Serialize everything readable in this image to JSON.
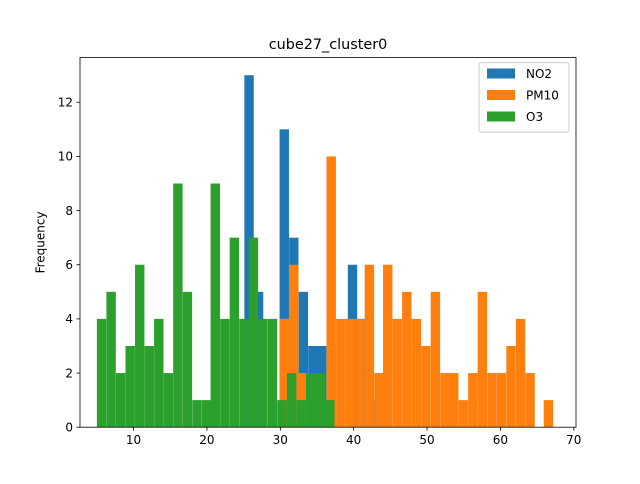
{
  "chart_data": {
    "type": "histogram",
    "title": "cube27_cluster0",
    "xlabel": "",
    "ylabel": "Frequency",
    "xlim": [
      2.7,
      70.3
    ],
    "ylim": [
      0,
      13.65
    ],
    "xticks": [
      10,
      20,
      30,
      40,
      50,
      60,
      70
    ],
    "yticks": [
      0,
      2,
      4,
      6,
      8,
      10,
      12
    ],
    "grid": false,
    "legend_position": "top-right",
    "bin_width": 1.28,
    "series": [
      {
        "name": "NO2",
        "color": "#1f77b4",
        "bins": [
          {
            "x0": 25.1,
            "count": 13
          },
          {
            "x0": 26.4,
            "count": 5
          },
          {
            "x0": 29.9,
            "count": 11
          },
          {
            "x0": 31.2,
            "count": 7
          },
          {
            "x0": 32.5,
            "count": 5
          },
          {
            "x0": 33.8,
            "count": 3
          },
          {
            "x0": 35.0,
            "count": 3
          },
          {
            "x0": 36.3,
            "count": 3
          },
          {
            "x0": 39.2,
            "count": 6
          },
          {
            "x0": 40.5,
            "count": 4
          },
          {
            "x0": 42.1,
            "count": 1
          }
        ]
      },
      {
        "name": "PM10",
        "color": "#ff7f0e",
        "bins": [
          {
            "x0": 29.9,
            "count": 4
          },
          {
            "x0": 31.2,
            "count": 6
          },
          {
            "x0": 32.5,
            "count": 2
          },
          {
            "x0": 36.3,
            "count": 10
          },
          {
            "x0": 37.6,
            "count": 4
          },
          {
            "x0": 38.9,
            "count": 4
          },
          {
            "x0": 40.2,
            "count": 4
          },
          {
            "x0": 41.5,
            "count": 6
          },
          {
            "x0": 42.8,
            "count": 2
          },
          {
            "x0": 44.0,
            "count": 6
          },
          {
            "x0": 45.3,
            "count": 4
          },
          {
            "x0": 46.6,
            "count": 5
          },
          {
            "x0": 47.9,
            "count": 4
          },
          {
            "x0": 49.2,
            "count": 3
          },
          {
            "x0": 50.5,
            "count": 5
          },
          {
            "x0": 51.8,
            "count": 2
          },
          {
            "x0": 53.0,
            "count": 2
          },
          {
            "x0": 54.3,
            "count": 1
          },
          {
            "x0": 55.6,
            "count": 2
          },
          {
            "x0": 56.9,
            "count": 5
          },
          {
            "x0": 58.2,
            "count": 2
          },
          {
            "x0": 59.5,
            "count": 2
          },
          {
            "x0": 60.8,
            "count": 3
          },
          {
            "x0": 62.1,
            "count": 4
          },
          {
            "x0": 63.4,
            "count": 2
          },
          {
            "x0": 65.9,
            "count": 1
          }
        ]
      },
      {
        "name": "O3",
        "color": "#2ca02c",
        "bins": [
          {
            "x0": 5.0,
            "count": 4
          },
          {
            "x0": 6.3,
            "count": 5
          },
          {
            "x0": 7.6,
            "count": 2
          },
          {
            "x0": 8.9,
            "count": 3
          },
          {
            "x0": 10.2,
            "count": 6
          },
          {
            "x0": 11.5,
            "count": 3
          },
          {
            "x0": 12.8,
            "count": 4
          },
          {
            "x0": 14.1,
            "count": 2
          },
          {
            "x0": 15.4,
            "count": 9
          },
          {
            "x0": 16.7,
            "count": 5
          },
          {
            "x0": 18.0,
            "count": 1
          },
          {
            "x0": 19.3,
            "count": 1
          },
          {
            "x0": 20.5,
            "count": 9
          },
          {
            "x0": 21.8,
            "count": 4
          },
          {
            "x0": 23.1,
            "count": 7
          },
          {
            "x0": 24.4,
            "count": 4
          },
          {
            "x0": 25.7,
            "count": 7
          },
          {
            "x0": 27.0,
            "count": 4
          },
          {
            "x0": 28.3,
            "count": 4
          },
          {
            "x0": 29.6,
            "count": 1
          },
          {
            "x0": 30.9,
            "count": 2
          },
          {
            "x0": 32.2,
            "count": 1
          },
          {
            "x0": 33.5,
            "count": 2
          },
          {
            "x0": 34.8,
            "count": 2
          },
          {
            "x0": 36.1,
            "count": 1
          }
        ]
      }
    ]
  }
}
